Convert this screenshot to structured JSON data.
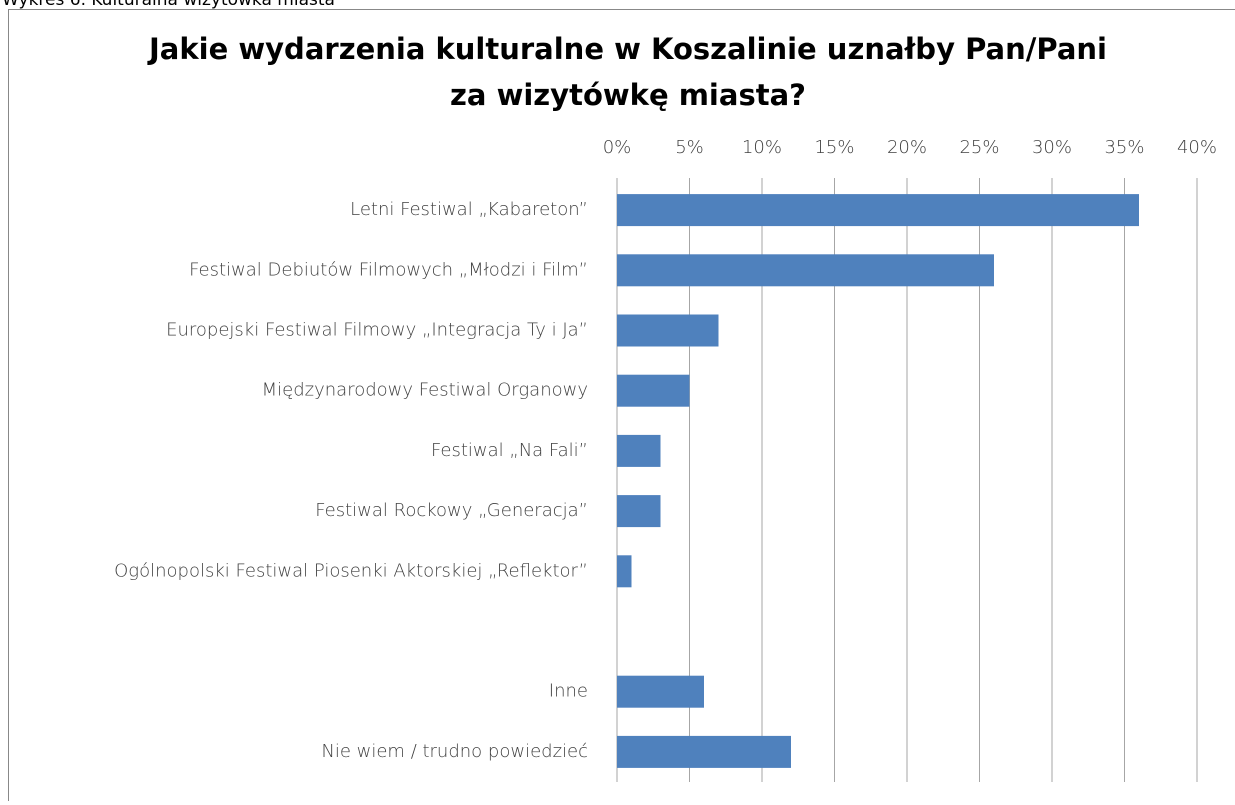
{
  "chart_data": {
    "type": "barh",
    "caption": "Wykres 6. Kulturalna wizytówka miasta",
    "title": [
      "Jakie wydarzenia kulturalne w Koszalinie uznałby Pan/Pani",
      "za wizytówkę miasta?"
    ],
    "categories": [
      "Letni Festiwal „Kabareton”",
      "Festiwal Debiutów Filmowych „Młodzi i Film”",
      "Europejski Festiwal Filmowy „Integracja Ty i Ja”",
      "Międzynarodowy Festiwal Organowy",
      "Festiwal „Na Fali”",
      "Festiwal Rockowy „Generacja”",
      "Ogólnopolski Festiwal Piosenki Aktorskiej „Reflektor”",
      null,
      "Inne",
      "Nie wiem / trudno powiedzieć"
    ],
    "values": [
      36,
      26,
      7,
      5,
      3,
      3,
      1,
      null,
      6,
      12
    ],
    "color": "#4f81bd",
    "xlim": [
      0,
      40
    ],
    "xticks": [
      {
        "value": 0,
        "label": "0%"
      },
      {
        "value": 5,
        "label": "5%"
      },
      {
        "value": 10,
        "label": "10%"
      },
      {
        "value": 15,
        "label": "15%"
      },
      {
        "value": 20,
        "label": "20%"
      },
      {
        "value": 25,
        "label": "25%"
      },
      {
        "value": 30,
        "label": "30%"
      },
      {
        "value": 35,
        "label": "35%"
      },
      {
        "value": 40,
        "label": "40%"
      }
    ],
    "grid": true
  }
}
